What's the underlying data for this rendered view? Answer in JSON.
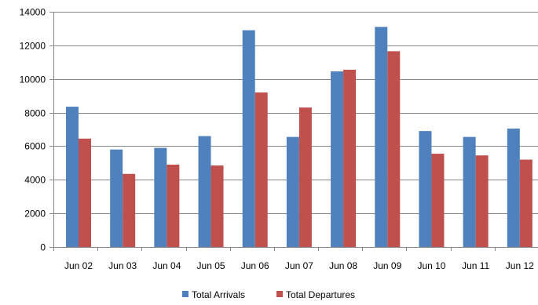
{
  "chart_data": {
    "type": "bar",
    "categories": [
      "Jun 02",
      "Jun 03",
      "Jun 04",
      "Jun 05",
      "Jun 06",
      "Jun 07",
      "Jun 08",
      "Jun 09",
      "Jun 10",
      "Jun 11",
      "Jun 12"
    ],
    "series": [
      {
        "name": "Total Arrivals",
        "color": "#4f81bd",
        "values": [
          8350,
          5800,
          5900,
          6600,
          12900,
          6550,
          10450,
          13100,
          6900,
          6550,
          7050
        ]
      },
      {
        "name": "Total Departures",
        "color": "#c0504d",
        "values": [
          6450,
          4350,
          4900,
          4850,
          9200,
          8300,
          10550,
          11650,
          5550,
          5450,
          5200
        ]
      }
    ],
    "yticks": [
      0,
      2000,
      4000,
      6000,
      8000,
      10000,
      12000,
      14000
    ],
    "ylim": [
      0,
      14000
    ],
    "title": "",
    "xlabel": "",
    "ylabel": "",
    "grid": true,
    "legend_position": "bottom"
  }
}
